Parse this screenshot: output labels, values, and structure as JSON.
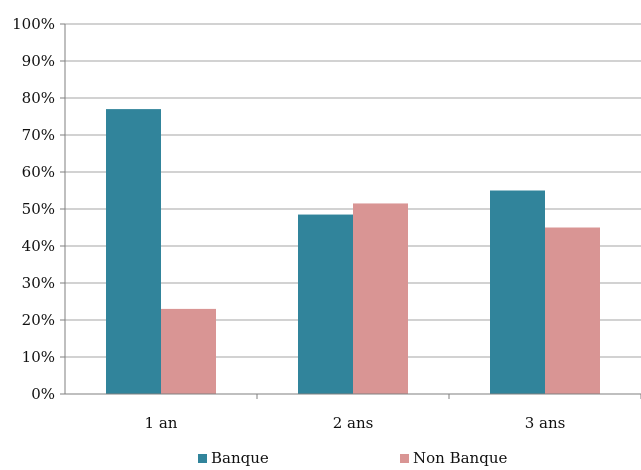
{
  "chart_data": {
    "type": "bar",
    "categories": [
      "1 an",
      "2 ans",
      "3 ans"
    ],
    "series": [
      {
        "name": "Banque",
        "values": [
          77,
          48.5,
          55
        ],
        "color": "#31849b"
      },
      {
        "name": "Non Banque",
        "values": [
          23,
          51.5,
          45
        ],
        "color": "#d99594"
      }
    ],
    "y_ticks": [
      "0%",
      "10%",
      "20%",
      "30%",
      "40%",
      "50%",
      "60%",
      "70%",
      "80%",
      "90%",
      "100%"
    ],
    "ylim": [
      0,
      100
    ],
    "y_unit": "%",
    "grid": true,
    "legend_position": "bottom",
    "colors": {
      "gridline": "#a6a6a6",
      "axis": "#7f7f7f",
      "text": "#111111"
    }
  }
}
